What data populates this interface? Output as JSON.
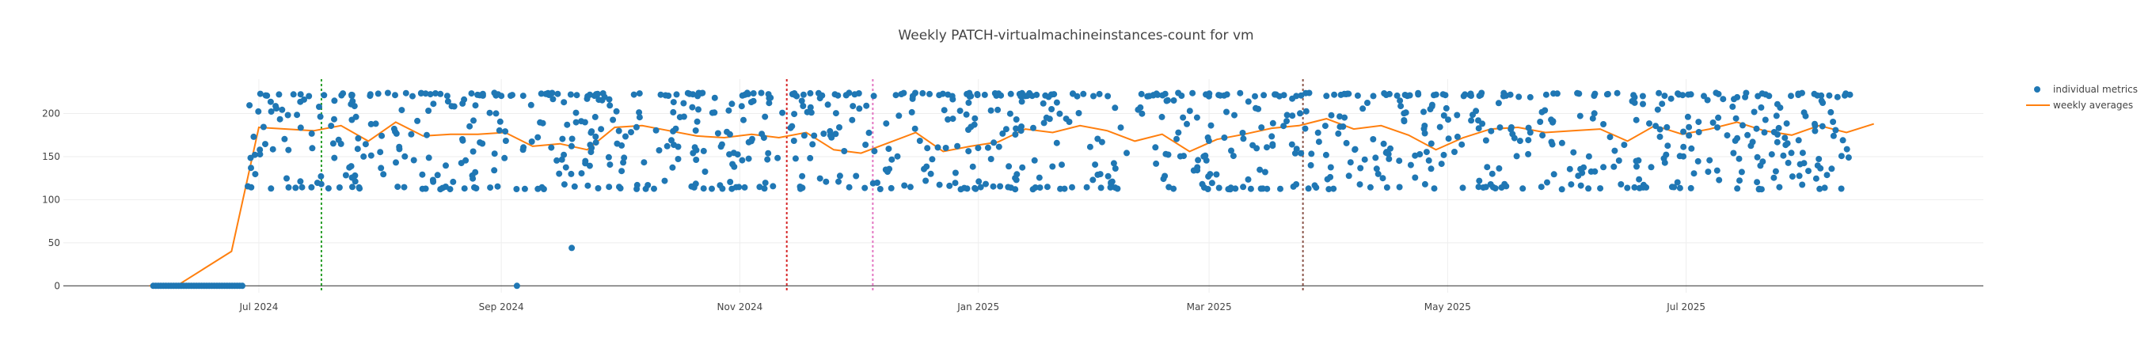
{
  "chart_data": {
    "type": "scatter",
    "title": "Weekly PATCH-virtualmachineinstances-count for vm",
    "xlabel": "",
    "ylabel": "",
    "x_axis_type": "date",
    "xlim": [
      "2024-05-12",
      "2025-09-15"
    ],
    "ylim": [
      -8,
      240
    ],
    "x_tick_labels": [
      {
        "date": "2024-07-01",
        "label": "Jul 2024"
      },
      {
        "date": "2024-09-01",
        "label": "Sep 2024"
      },
      {
        "date": "2024-11-01",
        "label": "Nov 2024"
      },
      {
        "date": "2025-01-01",
        "label": "Jan 2025"
      },
      {
        "date": "2025-03-01",
        "label": "Mar 2025"
      },
      {
        "date": "2025-05-01",
        "label": "May 2025"
      },
      {
        "date": "2025-07-01",
        "label": "Jul 2025"
      }
    ],
    "y_ticks": [
      0,
      50,
      100,
      150,
      200
    ],
    "grid": true,
    "legend_position": "top-right",
    "colors": {
      "points": "#1f77b4",
      "averages": "#ff7f0e",
      "grid": "#eeeeee",
      "zero_line": "#444444",
      "vline_green": "#2ca02c",
      "vline_red": "#d62728",
      "vline_magenta": "#e377c2",
      "vline_purple": "#8c564b"
    },
    "vertical_markers": [
      {
        "date": "2024-07-17",
        "color": "#2ca02c"
      },
      {
        "date": "2024-11-13",
        "color": "#d62728"
      },
      {
        "date": "2024-12-05",
        "color": "#e377c2"
      },
      {
        "date": "2025-03-25",
        "color": "#8c564b"
      }
    ],
    "series": [
      {
        "name": "individual metrics",
        "mode": "markers",
        "generator": {
          "zero_start": "2024-06-04",
          "zero_end": "2024-06-27",
          "active_start": "2024-06-28",
          "active_end": "2025-08-12",
          "samples_per_day": 2.6,
          "seed": 1234,
          "min": 112,
          "max": 224,
          "round": 1
        },
        "extra_points": [
          {
            "x": "2024-09-05",
            "y": 0
          },
          {
            "x": "2024-09-19",
            "y": 44
          }
        ]
      },
      {
        "name": "weekly averages",
        "mode": "lines",
        "x": [
          "2024-06-03",
          "2024-06-10",
          "2024-06-17",
          "2024-06-24",
          "2024-07-01",
          "2024-07-08",
          "2024-07-15",
          "2024-07-22",
          "2024-07-29",
          "2024-08-05",
          "2024-08-12",
          "2024-08-19",
          "2024-08-26",
          "2024-09-02",
          "2024-09-09",
          "2024-09-16",
          "2024-09-23",
          "2024-09-30",
          "2024-10-07",
          "2024-10-14",
          "2024-10-21",
          "2024-10-28",
          "2024-11-04",
          "2024-11-11",
          "2024-11-18",
          "2024-11-25",
          "2024-12-02",
          "2024-12-09",
          "2024-12-16",
          "2024-12-23",
          "2024-12-30",
          "2025-01-06",
          "2025-01-13",
          "2025-01-20",
          "2025-01-27",
          "2025-02-03",
          "2025-02-10",
          "2025-02-17",
          "2025-02-24",
          "2025-03-03",
          "2025-03-10",
          "2025-03-17",
          "2025-03-24",
          "2025-03-31",
          "2025-04-07",
          "2025-04-14",
          "2025-04-21",
          "2025-04-28",
          "2025-05-05",
          "2025-05-12",
          "2025-05-19",
          "2025-05-26",
          "2025-06-02",
          "2025-06-09",
          "2025-06-16",
          "2025-06-23",
          "2025-06-30",
          "2025-07-07",
          "2025-07-14",
          "2025-07-21",
          "2025-07-28",
          "2025-08-04",
          "2025-08-11",
          "2025-08-18"
        ],
        "y": [
          0,
          0,
          20,
          40,
          184,
          182,
          180,
          186,
          168,
          190,
          174,
          176,
          176,
          178,
          162,
          165,
          158,
          184,
          186,
          180,
          174,
          172,
          176,
          172,
          178,
          158,
          154,
          166,
          178,
          156,
          162,
          167,
          182,
          178,
          186,
          180,
          168,
          176,
          156,
          170,
          176,
          183,
          186,
          194,
          182,
          186,
          175,
          158,
          172,
          182,
          184,
          178,
          180,
          182,
          168,
          186,
          176,
          182,
          190,
          180,
          175,
          186,
          178,
          188
        ]
      }
    ]
  }
}
